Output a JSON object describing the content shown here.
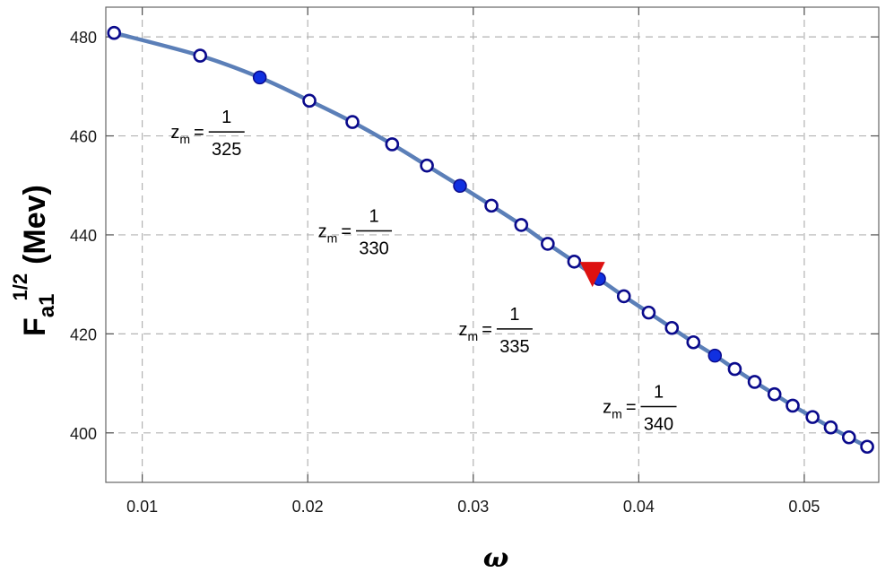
{
  "chart_data": {
    "type": "line",
    "xlabel": "ω",
    "ylabel": {
      "base": "F",
      "subscript": "a1",
      "superscript": "1/2",
      "unit": "(Mev)"
    },
    "xlim": [
      0.0078,
      0.0545
    ],
    "ylim": [
      390,
      486
    ],
    "x_ticks": [
      0.01,
      0.02,
      0.03,
      0.04,
      0.05
    ],
    "x_tick_labels": [
      "0.01",
      "0.02",
      "0.03",
      "0.04",
      "0.05"
    ],
    "y_ticks": [
      400,
      420,
      440,
      460,
      480
    ],
    "y_tick_labels": [
      "400",
      "420",
      "440",
      "460",
      "480"
    ],
    "grid": true,
    "line_color": "#5b7fb8",
    "marker_edge_color": "#0a0a8c",
    "filled_marker_color": "#1030e0",
    "highlight_color": "#dd1111",
    "series": [
      {
        "style": "line",
        "x": [
          0.0083,
          0.0135,
          0.0171,
          0.0201,
          0.0227,
          0.0251,
          0.0272,
          0.0292,
          0.0311,
          0.0329,
          0.0345,
          0.0361,
          0.0376,
          0.0391,
          0.0406,
          0.042,
          0.0433,
          0.0446,
          0.0458,
          0.047,
          0.0482,
          0.0493,
          0.0505,
          0.0516,
          0.0527,
          0.0538
        ],
        "y": [
          480.8,
          476.2,
          471.8,
          467.1,
          462.8,
          458.3,
          454.0,
          449.9,
          445.9,
          442.0,
          438.2,
          434.6,
          431.1,
          427.6,
          424.3,
          421.2,
          418.3,
          415.6,
          412.9,
          410.3,
          407.8,
          405.5,
          403.2,
          401.1,
          399.1,
          397.2
        ]
      },
      {
        "style": "open-markers",
        "x": [
          0.0083,
          0.0135,
          0.0201,
          0.0227,
          0.0251,
          0.0272,
          0.0311,
          0.0329,
          0.0345,
          0.0361,
          0.0391,
          0.0406,
          0.042,
          0.0433,
          0.0458,
          0.047,
          0.0482,
          0.0493,
          0.0505,
          0.0516,
          0.0527,
          0.0538
        ],
        "y": [
          480.8,
          476.2,
          467.1,
          462.8,
          458.3,
          454.0,
          445.9,
          442.0,
          438.2,
          434.6,
          427.6,
          424.3,
          421.2,
          418.3,
          412.9,
          410.3,
          407.8,
          405.5,
          403.2,
          401.1,
          399.1,
          397.2
        ]
      },
      {
        "style": "filled-markers",
        "x": [
          0.0171,
          0.0292,
          0.0376,
          0.0446
        ],
        "y": [
          471.8,
          449.9,
          431.1,
          415.6
        ]
      },
      {
        "style": "triangle-marker",
        "x": [
          0.0372
        ],
        "y": [
          432.0
        ]
      }
    ],
    "annotations": [
      {
        "var": "z",
        "sub": "m",
        "eq": "=",
        "num": "1",
        "den": "325",
        "x": 0.0151,
        "y": 460.8
      },
      {
        "var": "z",
        "sub": "m",
        "eq": "=",
        "num": "1",
        "den": "330",
        "x": 0.024,
        "y": 440.8
      },
      {
        "var": "z",
        "sub": "m",
        "eq": "=",
        "num": "1",
        "den": "335",
        "x": 0.0325,
        "y": 421.0
      },
      {
        "var": "z",
        "sub": "m",
        "eq": "=",
        "num": "1",
        "den": "340",
        "x": 0.0412,
        "y": 405.3
      }
    ]
  }
}
